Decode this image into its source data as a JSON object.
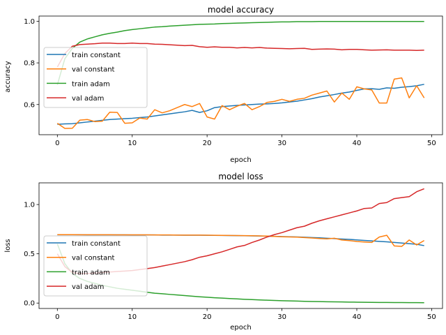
{
  "chart_data": [
    {
      "type": "line",
      "title": "model accuracy",
      "xlabel": "epoch",
      "ylabel": "accuracy",
      "xlim": [
        -2.45,
        51.45
      ],
      "ylim": [
        0.455,
        1.025
      ],
      "xticks": [
        0,
        10,
        20,
        30,
        40,
        50
      ],
      "yticks": [
        0.6,
        0.8,
        1.0
      ],
      "ytick_labels": [
        "0.6",
        "0.8",
        "1.0"
      ],
      "grid": false,
      "legend": "center-left",
      "x": [
        0,
        1,
        2,
        3,
        4,
        5,
        6,
        7,
        8,
        9,
        10,
        11,
        12,
        13,
        14,
        15,
        16,
        17,
        18,
        19,
        20,
        21,
        22,
        23,
        24,
        25,
        26,
        27,
        28,
        29,
        30,
        31,
        32,
        33,
        34,
        35,
        36,
        37,
        38,
        39,
        40,
        41,
        42,
        43,
        44,
        45,
        46,
        47,
        48,
        49
      ],
      "series": [
        {
          "name": "train constant",
          "color": "#1f77b4",
          "values": [
            0.505,
            0.507,
            0.508,
            0.512,
            0.516,
            0.52,
            0.524,
            0.528,
            0.53,
            0.532,
            0.534,
            0.537,
            0.54,
            0.545,
            0.55,
            0.555,
            0.56,
            0.565,
            0.572,
            0.562,
            0.57,
            0.585,
            0.59,
            0.593,
            0.596,
            0.598,
            0.6,
            0.602,
            0.603,
            0.605,
            0.608,
            0.612,
            0.616,
            0.622,
            0.628,
            0.636,
            0.642,
            0.648,
            0.655,
            0.66,
            0.668,
            0.675,
            0.676,
            0.673,
            0.68,
            0.678,
            0.683,
            0.686,
            0.69,
            0.697
          ]
        },
        {
          "name": "val constant",
          "color": "#ff7f0e",
          "values": [
            0.51,
            0.485,
            0.486,
            0.525,
            0.528,
            0.518,
            0.52,
            0.563,
            0.562,
            0.51,
            0.512,
            0.535,
            0.53,
            0.575,
            0.56,
            0.57,
            0.585,
            0.6,
            0.59,
            0.605,
            0.54,
            0.53,
            0.595,
            0.575,
            0.592,
            0.605,
            0.575,
            0.59,
            0.61,
            0.615,
            0.625,
            0.615,
            0.625,
            0.63,
            0.645,
            0.655,
            0.665,
            0.612,
            0.655,
            0.625,
            0.685,
            0.675,
            0.67,
            0.607,
            0.607,
            0.722,
            0.728,
            0.632,
            0.69,
            0.632
          ]
        },
        {
          "name": "train adam",
          "color": "#2ca02c",
          "values": [
            0.695,
            0.82,
            0.87,
            0.9,
            0.915,
            0.925,
            0.935,
            0.942,
            0.948,
            0.955,
            0.96,
            0.964,
            0.968,
            0.972,
            0.974,
            0.977,
            0.979,
            0.981,
            0.983,
            0.985,
            0.986,
            0.987,
            0.989,
            0.99,
            0.991,
            0.992,
            0.993,
            0.994,
            0.995,
            0.996,
            0.997,
            0.997,
            0.998,
            0.998,
            0.998,
            0.999,
            0.999,
            0.999,
            0.999,
            0.999,
            0.999,
            0.999,
            0.999,
            0.999,
            0.999,
            0.999,
            0.999,
            0.999,
            0.999,
            0.999
          ]
        },
        {
          "name": "val adam",
          "color": "#d62728",
          "values": [
            0.78,
            0.845,
            0.88,
            0.888,
            0.89,
            0.892,
            0.895,
            0.895,
            0.893,
            0.893,
            0.895,
            0.893,
            0.893,
            0.89,
            0.889,
            0.887,
            0.885,
            0.883,
            0.884,
            0.878,
            0.875,
            0.877,
            0.875,
            0.875,
            0.872,
            0.874,
            0.872,
            0.874,
            0.871,
            0.87,
            0.869,
            0.868,
            0.869,
            0.87,
            0.865,
            0.866,
            0.867,
            0.866,
            0.863,
            0.865,
            0.865,
            0.863,
            0.861,
            0.862,
            0.863,
            0.861,
            0.861,
            0.861,
            0.86,
            0.861
          ]
        }
      ]
    },
    {
      "type": "line",
      "title": "model loss",
      "xlabel": "epoch",
      "ylabel": "loss",
      "xlim": [
        -2.45,
        51.45
      ],
      "ylim": [
        -0.055,
        1.22
      ],
      "xticks": [
        0,
        10,
        20,
        30,
        40,
        50
      ],
      "yticks": [
        0.0,
        0.5,
        1.0
      ],
      "ytick_labels": [
        "0.0",
        "0.5",
        "1.0"
      ],
      "grid": false,
      "legend": "lower-left",
      "x": [
        0,
        1,
        2,
        3,
        4,
        5,
        6,
        7,
        8,
        9,
        10,
        11,
        12,
        13,
        14,
        15,
        16,
        17,
        18,
        19,
        20,
        21,
        22,
        23,
        24,
        25,
        26,
        27,
        28,
        29,
        30,
        31,
        32,
        33,
        34,
        35,
        36,
        37,
        38,
        39,
        40,
        41,
        42,
        43,
        44,
        45,
        46,
        47,
        48,
        49
      ],
      "series": [
        {
          "name": "train constant",
          "color": "#1f77b4",
          "values": [
            0.693,
            0.693,
            0.693,
            0.693,
            0.692,
            0.692,
            0.692,
            0.692,
            0.692,
            0.692,
            0.691,
            0.691,
            0.691,
            0.691,
            0.69,
            0.69,
            0.69,
            0.689,
            0.689,
            0.689,
            0.688,
            0.687,
            0.686,
            0.685,
            0.684,
            0.683,
            0.682,
            0.681,
            0.679,
            0.677,
            0.675,
            0.673,
            0.671,
            0.668,
            0.665,
            0.662,
            0.658,
            0.654,
            0.65,
            0.646,
            0.641,
            0.636,
            0.631,
            0.626,
            0.621,
            0.615,
            0.609,
            0.603,
            0.597,
            0.583
          ]
        },
        {
          "name": "val constant",
          "color": "#ff7f0e",
          "values": [
            0.694,
            0.694,
            0.694,
            0.693,
            0.693,
            0.693,
            0.693,
            0.693,
            0.692,
            0.692,
            0.692,
            0.692,
            0.692,
            0.691,
            0.691,
            0.691,
            0.69,
            0.69,
            0.69,
            0.69,
            0.689,
            0.688,
            0.687,
            0.686,
            0.685,
            0.684,
            0.683,
            0.682,
            0.68,
            0.676,
            0.673,
            0.671,
            0.669,
            0.665,
            0.66,
            0.655,
            0.652,
            0.658,
            0.64,
            0.634,
            0.625,
            0.62,
            0.615,
            0.67,
            0.688,
            0.58,
            0.575,
            0.64,
            0.59,
            0.635
          ]
        },
        {
          "name": "train adam",
          "color": "#2ca02c",
          "values": [
            0.6,
            0.4,
            0.3,
            0.25,
            0.22,
            0.2,
            0.18,
            0.165,
            0.15,
            0.14,
            0.13,
            0.12,
            0.11,
            0.1,
            0.095,
            0.088,
            0.082,
            0.076,
            0.07,
            0.064,
            0.059,
            0.054,
            0.05,
            0.046,
            0.042,
            0.038,
            0.035,
            0.032,
            0.029,
            0.026,
            0.024,
            0.022,
            0.02,
            0.018,
            0.016,
            0.015,
            0.013,
            0.012,
            0.011,
            0.01,
            0.009,
            0.008,
            0.007,
            0.006,
            0.006,
            0.005,
            0.005,
            0.004,
            0.004,
            0.003
          ]
        },
        {
          "name": "val adam",
          "color": "#d62728",
          "values": [
            0.5,
            0.37,
            0.31,
            0.3,
            0.3,
            0.305,
            0.31,
            0.315,
            0.32,
            0.325,
            0.33,
            0.34,
            0.35,
            0.36,
            0.375,
            0.39,
            0.405,
            0.42,
            0.44,
            0.465,
            0.48,
            0.5,
            0.52,
            0.545,
            0.57,
            0.585,
            0.615,
            0.64,
            0.67,
            0.695,
            0.715,
            0.74,
            0.765,
            0.78,
            0.81,
            0.835,
            0.855,
            0.875,
            0.895,
            0.915,
            0.935,
            0.96,
            0.965,
            1.01,
            1.02,
            1.06,
            1.07,
            1.08,
            1.13,
            1.16
          ]
        }
      ]
    }
  ]
}
